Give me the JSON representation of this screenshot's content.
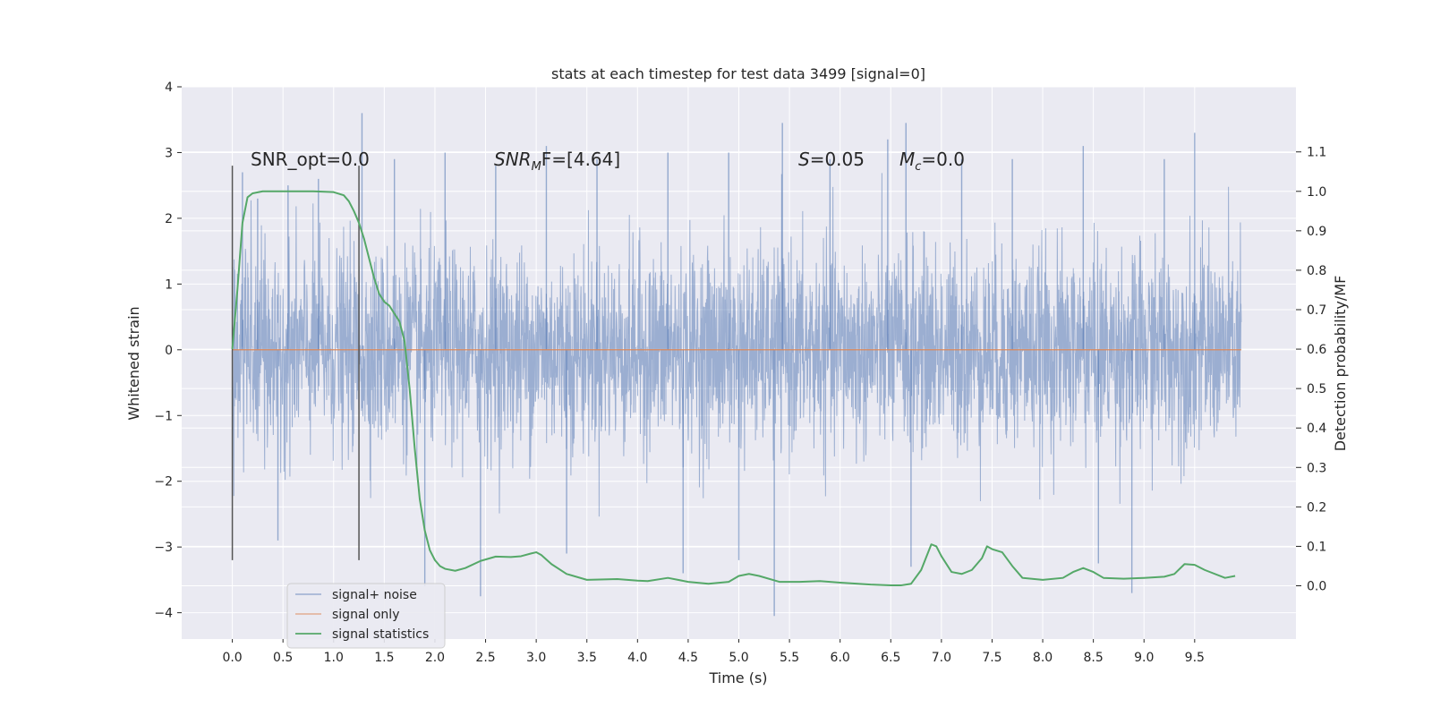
{
  "chart_data": {
    "type": "line",
    "title": "stats at each timestep for test data 3499 [signal=0]",
    "xlabel": "Time (s)",
    "ylabel": "Whitened strain",
    "y2label": "Detection probability/MF",
    "xlim": [
      -0.5,
      10.5
    ],
    "ylim": [
      -4.4,
      4.0
    ],
    "y2lim": [
      -0.135,
      1.265
    ],
    "xticks": [
      0.0,
      0.5,
      1.0,
      1.5,
      2.0,
      2.5,
      3.0,
      3.5,
      4.0,
      4.5,
      5.0,
      5.5,
      6.0,
      6.5,
      7.0,
      7.5,
      8.0,
      8.5,
      9.0,
      9.5
    ],
    "xtick_labels": [
      "0.0",
      "0.5",
      "1.0",
      "1.5",
      "2.0",
      "2.5",
      "3.0",
      "3.5",
      "4.0",
      "4.5",
      "5.0",
      "5.5",
      "6.0",
      "6.5",
      "7.0",
      "7.5",
      "8.0",
      "8.5",
      "9.0",
      "9.5"
    ],
    "yticks": [
      -4,
      -3,
      -2,
      -1,
      0,
      1,
      2,
      3,
      4
    ],
    "ytick_labels": [
      "−4",
      "−3",
      "−2",
      "−1",
      "0",
      "1",
      "2",
      "3",
      "4"
    ],
    "y2ticks": [
      0.0,
      0.1,
      0.2,
      0.3,
      0.4,
      0.5,
      0.6,
      0.7,
      0.8,
      0.9,
      1.0,
      1.1
    ],
    "y2tick_labels": [
      "0.0",
      "0.1",
      "0.2",
      "0.3",
      "0.4",
      "0.5",
      "0.6",
      "0.7",
      "0.8",
      "0.9",
      "1.0",
      "1.1"
    ],
    "grid": true,
    "legend_position": "lower-left",
    "annotations": {
      "snr_opt": "SNR_opt=0.0",
      "snr_mf_prefix": "SNR",
      "snr_mf_sub": "M",
      "snr_mf_rest": "F=[4.64]",
      "s_italic": "S",
      "s_rest": "=0.05",
      "mc_italic": "M",
      "mc_sub": "c",
      "mc_rest": "=0.0"
    },
    "vertical_lines_x": [
      0.0,
      1.25
    ],
    "vertical_lines_y_range": [
      -3.2,
      2.8
    ],
    "series": [
      {
        "name": "signal+ noise",
        "color": "#4c72b0",
        "description_axis": "left",
        "x_range": [
          0.0,
          9.96
        ],
        "envelope_sigma": 0.75,
        "spikes": [
          {
            "x": 0.1,
            "y": 2.7
          },
          {
            "x": 0.25,
            "y": 2.3
          },
          {
            "x": 0.55,
            "y": 2.5
          },
          {
            "x": 0.85,
            "y": 2.6
          },
          {
            "x": 1.28,
            "y": 3.6
          },
          {
            "x": 1.6,
            "y": 2.9
          },
          {
            "x": 2.1,
            "y": 3.0
          },
          {
            "x": 2.6,
            "y": 2.8
          },
          {
            "x": 3.1,
            "y": 3.1
          },
          {
            "x": 3.6,
            "y": 2.9
          },
          {
            "x": 4.3,
            "y": 3.0
          },
          {
            "x": 4.9,
            "y": 3.0
          },
          {
            "x": 5.43,
            "y": 3.45
          },
          {
            "x": 5.9,
            "y": 2.9
          },
          {
            "x": 6.47,
            "y": 3.2
          },
          {
            "x": 6.65,
            "y": 3.45
          },
          {
            "x": 7.2,
            "y": 2.9
          },
          {
            "x": 7.7,
            "y": 2.9
          },
          {
            "x": 8.4,
            "y": 3.1
          },
          {
            "x": 9.2,
            "y": 2.9
          },
          {
            "x": 9.5,
            "y": 3.3
          },
          {
            "x": 1.9,
            "y": -3.6
          },
          {
            "x": 2.45,
            "y": -3.75
          },
          {
            "x": 4.45,
            "y": -3.4
          },
          {
            "x": 5.0,
            "y": -3.2
          },
          {
            "x": 5.35,
            "y": -4.05
          },
          {
            "x": 6.7,
            "y": -3.3
          },
          {
            "x": 8.55,
            "y": -3.25
          },
          {
            "x": 8.88,
            "y": -3.7
          },
          {
            "x": 0.45,
            "y": -2.9
          },
          {
            "x": 3.3,
            "y": -3.1
          }
        ]
      },
      {
        "name": "signal only",
        "color": "#dd8452",
        "description_axis": "left",
        "x": [
          0.0,
          9.96
        ],
        "y": [
          0.0,
          0.0
        ]
      },
      {
        "name": "signal statistics",
        "color": "#55a868",
        "description_axis": "right",
        "x": [
          0.0,
          0.05,
          0.1,
          0.15,
          0.2,
          0.3,
          0.5,
          0.8,
          1.0,
          1.05,
          1.1,
          1.15,
          1.2,
          1.25,
          1.3,
          1.35,
          1.4,
          1.45,
          1.5,
          1.55,
          1.6,
          1.65,
          1.7,
          1.75,
          1.8,
          1.85,
          1.9,
          1.95,
          2.0,
          2.05,
          2.1,
          2.2,
          2.3,
          2.45,
          2.6,
          2.75,
          2.85,
          2.95,
          3.0,
          3.05,
          3.15,
          3.3,
          3.5,
          3.8,
          4.0,
          4.1,
          4.3,
          4.5,
          4.7,
          4.9,
          5.0,
          5.1,
          5.2,
          5.4,
          5.6,
          5.8,
          6.0,
          6.3,
          6.5,
          6.6,
          6.7,
          6.8,
          6.9,
          6.95,
          7.0,
          7.1,
          7.2,
          7.3,
          7.4,
          7.45,
          7.5,
          7.6,
          7.7,
          7.8,
          8.0,
          8.2,
          8.3,
          8.4,
          8.5,
          8.6,
          8.8,
          9.0,
          9.2,
          9.3,
          9.4,
          9.5,
          9.6,
          9.8,
          9.9
        ],
        "y": [
          0.6,
          0.75,
          0.92,
          0.985,
          0.995,
          1.0,
          1.0,
          1.0,
          0.998,
          0.994,
          0.99,
          0.975,
          0.95,
          0.92,
          0.88,
          0.83,
          0.78,
          0.74,
          0.72,
          0.71,
          0.69,
          0.67,
          0.62,
          0.5,
          0.35,
          0.22,
          0.14,
          0.09,
          0.065,
          0.05,
          0.043,
          0.038,
          0.045,
          0.063,
          0.074,
          0.073,
          0.075,
          0.082,
          0.085,
          0.078,
          0.055,
          0.03,
          0.015,
          0.017,
          0.013,
          0.012,
          0.02,
          0.01,
          0.005,
          0.01,
          0.025,
          0.03,
          0.025,
          0.01,
          0.01,
          0.012,
          0.008,
          0.003,
          0.001,
          0.001,
          0.005,
          0.04,
          0.105,
          0.1,
          0.075,
          0.035,
          0.03,
          0.04,
          0.07,
          0.1,
          0.093,
          0.085,
          0.05,
          0.02,
          0.015,
          0.02,
          0.035,
          0.045,
          0.035,
          0.02,
          0.018,
          0.02,
          0.023,
          0.03,
          0.055,
          0.053,
          0.04,
          0.02,
          0.025
        ]
      }
    ]
  }
}
